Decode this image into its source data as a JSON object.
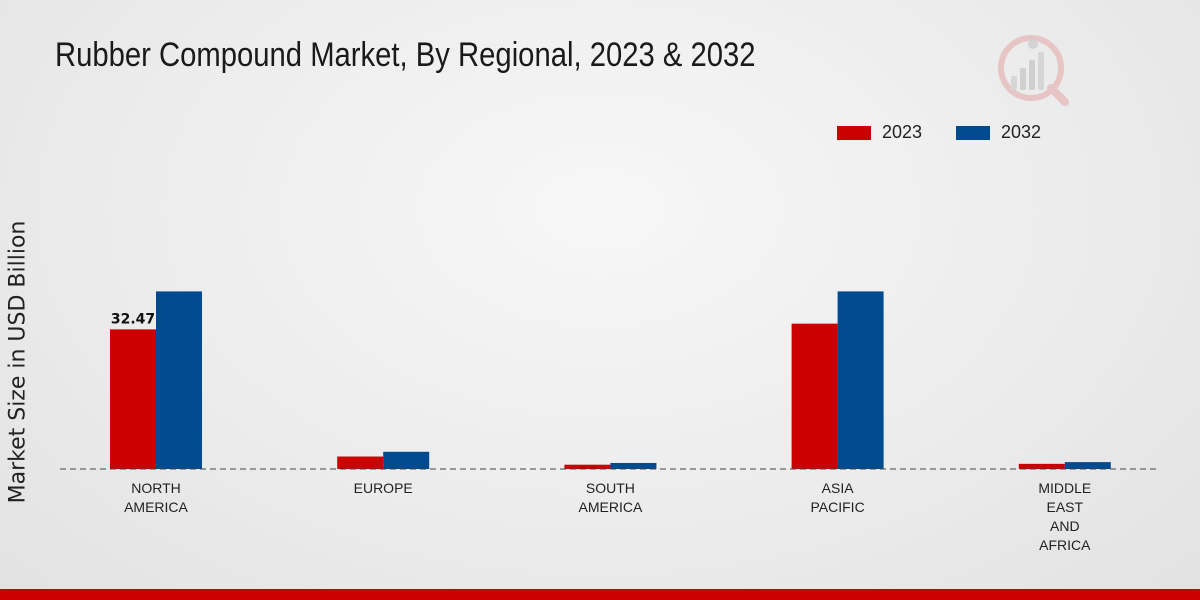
{
  "chart_data": {
    "type": "bar",
    "title": "Rubber Compound Market, By Regional, 2023 & 2032",
    "ylabel": "Market Size in USD Billion",
    "xlabel": "",
    "categories": [
      [
        "NORTH",
        "AMERICA"
      ],
      [
        "EUROPE"
      ],
      [
        "SOUTH",
        "AMERICA"
      ],
      [
        "ASIA",
        "PACIFIC"
      ],
      [
        "MIDDLE",
        "EAST",
        "AND",
        "AFRICA"
      ]
    ],
    "series": [
      {
        "name": "2023",
        "color": "#cc0000",
        "values": [
          32.47,
          2.9,
          1.0,
          33.8,
          1.2
        ]
      },
      {
        "name": "2032",
        "color": "#004a8f",
        "values": [
          41.3,
          4.0,
          1.4,
          41.3,
          1.6
        ]
      }
    ],
    "data_labels": [
      {
        "series": 0,
        "index": 0,
        "text": "32.47"
      }
    ],
    "ylim": [
      0,
      60
    ],
    "legend_position": "top-right",
    "grid": false
  }
}
